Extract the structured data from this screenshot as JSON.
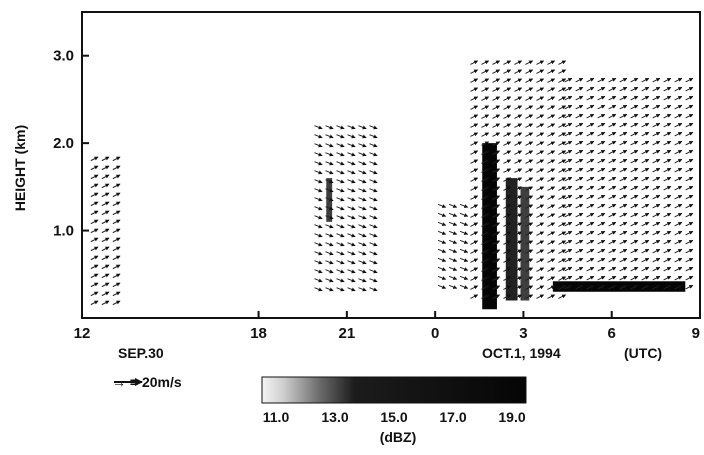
{
  "chart_data": {
    "type": "heatmap",
    "title": "",
    "ylabel": "HEIGHT (km)",
    "xlabel": "",
    "x_unit": "(UTC)",
    "date_labels": [
      "SEP.30",
      "OCT.1, 1994"
    ],
    "x_ticks": [
      "12",
      "18",
      "21",
      "0",
      "3",
      "6",
      "9"
    ],
    "x_range_hours": [
      12,
      33
    ],
    "y_ticks": [
      "1.0",
      "2.0",
      "3.0"
    ],
    "ylim": [
      0,
      3.5
    ],
    "grid": false,
    "vector_legend": "→ = 20m/s",
    "colorbar": {
      "label": "(dBZ)",
      "ticks": [
        "11.0",
        "13.0",
        "15.0",
        "17.0",
        "19.0"
      ],
      "range": [
        11,
        19
      ],
      "colors": [
        "#f2f2f2",
        "#111111"
      ]
    },
    "wind_regions": [
      {
        "x0": 12.3,
        "x1": 13.2,
        "y0": 0.15,
        "y1": 1.8,
        "dir": "NE"
      },
      {
        "x0": 19.9,
        "x1": 22.1,
        "y0": 0.25,
        "y1": 2.2,
        "dir": "SE"
      },
      {
        "x0": 24.1,
        "x1": 25.2,
        "y0": 0.3,
        "y1": 1.3,
        "dir": "SE"
      },
      {
        "x0": 25.2,
        "x1": 28.4,
        "y0": 0.2,
        "y1": 2.9,
        "dir": "NE"
      },
      {
        "x0": 28.4,
        "x1": 32.8,
        "y0": 0.3,
        "y1": 2.7,
        "dir": "NE"
      }
    ],
    "reflectivity_regions": [
      {
        "x0": 25.6,
        "x1": 26.1,
        "y0": 0.1,
        "y1": 2.0,
        "dbz": 19
      },
      {
        "x0": 26.4,
        "x1": 26.8,
        "y0": 0.2,
        "y1": 1.6,
        "dbz": 18
      },
      {
        "x0": 26.9,
        "x1": 27.2,
        "y0": 0.2,
        "y1": 1.5,
        "dbz": 17
      },
      {
        "x0": 20.3,
        "x1": 20.5,
        "y0": 1.1,
        "y1": 1.6,
        "dbz": 17
      },
      {
        "x0": 28.0,
        "x1": 32.5,
        "y0": 0.3,
        "y1": 0.42,
        "dbz": 19
      }
    ]
  }
}
